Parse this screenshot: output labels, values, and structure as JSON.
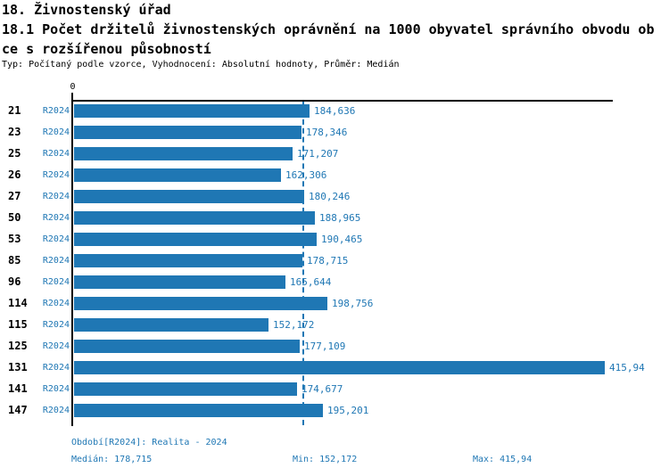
{
  "title": {
    "line1": "18. Živnostenský úřad",
    "line2": "18.1 Počet držitelů živnostenských oprávnění na 1000 obyvatel správního obvodu ob",
    "line3": "ce s rozšířenou působností",
    "meta": "Typ: Počítaný podle vzorce, Vyhodnocení: Absolutní hodnoty, Průměr: Medián"
  },
  "chart_data": {
    "type": "bar",
    "orientation": "horizontal",
    "categories": [
      "21",
      "23",
      "25",
      "26",
      "27",
      "50",
      "53",
      "85",
      "96",
      "114",
      "115",
      "125",
      "131",
      "141",
      "147"
    ],
    "series_label": "R2024",
    "values": [
      184.636,
      178.346,
      171.207,
      162.306,
      180.246,
      188.965,
      190.465,
      178.715,
      165.644,
      198.756,
      152.172,
      177.109,
      415.94,
      174.677,
      195.201
    ],
    "value_labels": [
      "184,636",
      "178,346",
      "171,207",
      "162,306",
      "180,246",
      "188,965",
      "190,465",
      "178,715",
      "165,644",
      "198,756",
      "152,172",
      "177,109",
      "415,94",
      "174,677",
      "195,201"
    ],
    "axis_zero_label": "0",
    "median_line_value": 178.715,
    "xlim": [
      0,
      423
    ],
    "grid": false,
    "legend_position": "none"
  },
  "footer": {
    "period": "Období[R2024]: Realita - 2024",
    "median": "Medián: 178,715",
    "min": "Min: 152,172",
    "max": "Max: 415,94"
  },
  "colors": {
    "bar": "#1f77b4",
    "accent_text": "#1f77b4",
    "axis": "#000000"
  }
}
